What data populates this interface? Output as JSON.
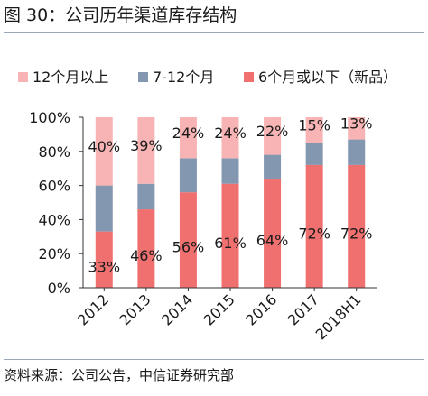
{
  "figure": {
    "title": "图 30：公司历年渠道库存结构",
    "source": "资料来源：公司公告，中信证券研究部"
  },
  "chart_data": {
    "type": "bar",
    "stacked": true,
    "categories": [
      "2012",
      "2013",
      "2014",
      "2015",
      "2016",
      "2017",
      "2018H1"
    ],
    "series": [
      {
        "name": "6个月或以下（新品）",
        "values": [
          33,
          46,
          56,
          61,
          64,
          72,
          72
        ],
        "color": "#f07070",
        "labels": [
          "33%",
          "46%",
          "56%",
          "61%",
          "64%",
          "72%",
          "72%"
        ]
      },
      {
        "name": "7-12个月",
        "values": [
          27,
          15,
          20,
          15,
          14,
          13,
          15
        ],
        "color": "#8497b0",
        "labels": [
          "",
          "",
          "",
          "",
          "",
          "",
          ""
        ]
      },
      {
        "name": "12个月以上",
        "values": [
          40,
          39,
          24,
          24,
          22,
          15,
          13
        ],
        "color": "#f8b4b4",
        "labels": [
          "40%",
          "39%",
          "24%",
          "24%",
          "22%",
          "15%",
          "13%"
        ]
      }
    ],
    "legend": {
      "entries": [
        "12个月以上",
        "7-12个月",
        "6个月或以下（新品）"
      ],
      "position": "top"
    },
    "ylim": [
      0,
      100
    ],
    "y_ticks": [
      "0%",
      "20%",
      "40%",
      "60%",
      "80%",
      "100%"
    ],
    "grid": false
  }
}
